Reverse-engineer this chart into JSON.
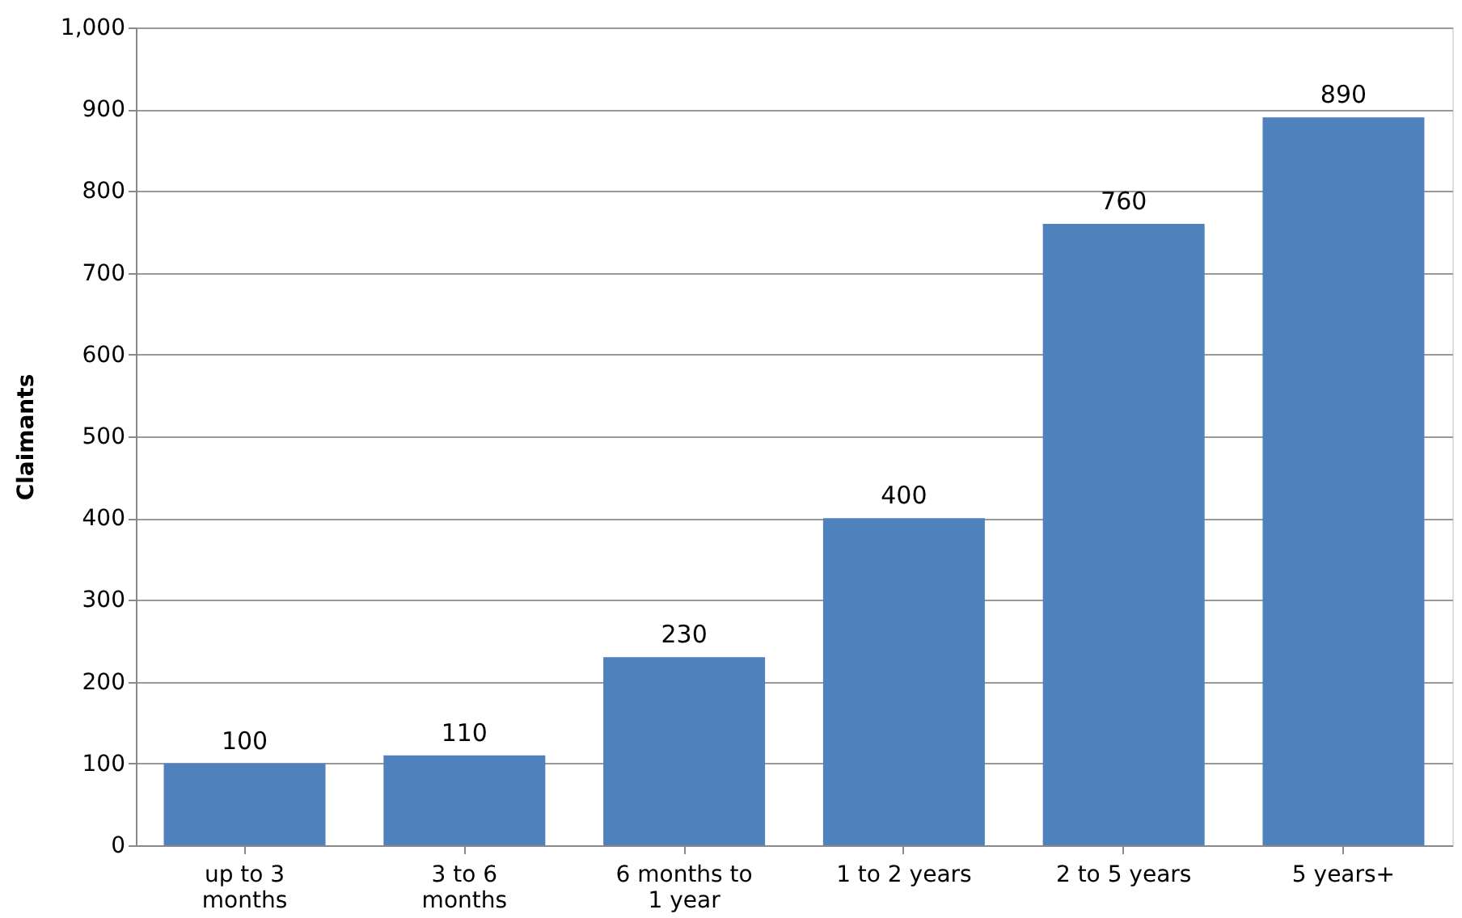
{
  "chart_data": {
    "type": "bar",
    "ylabel": "Claimants",
    "categories": [
      "up to 3 months",
      "3 to 6 months",
      "6 months to 1 year",
      "1 to 2 years",
      "2 to 5 years",
      "5 years+"
    ],
    "values": [
      100,
      110,
      230,
      400,
      760,
      890
    ],
    "color": "#4f81bd",
    "ylim": [
      0,
      1000
    ],
    "yticks": [
      0,
      100,
      200,
      300,
      400,
      500,
      600,
      700,
      800,
      900,
      {
        "value": 1000,
        "label": "1,000"
      }
    ],
    "grid": "y",
    "data_labels": true
  }
}
